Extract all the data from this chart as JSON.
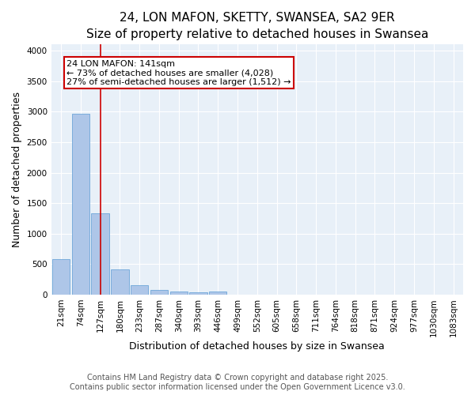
{
  "title": "24, LON MAFON, SKETTY, SWANSEA, SA2 9ER",
  "subtitle": "Size of property relative to detached houses in Swansea",
  "xlabel": "Distribution of detached houses by size in Swansea",
  "ylabel": "Number of detached properties",
  "categories": [
    "21sqm",
    "74sqm",
    "127sqm",
    "180sqm",
    "233sqm",
    "287sqm",
    "340sqm",
    "393sqm",
    "446sqm",
    "499sqm",
    "552sqm",
    "605sqm",
    "658sqm",
    "711sqm",
    "764sqm",
    "818sqm",
    "871sqm",
    "924sqm",
    "977sqm",
    "1030sqm",
    "1083sqm"
  ],
  "values": [
    580,
    2970,
    1330,
    420,
    160,
    75,
    50,
    35,
    50,
    0,
    0,
    0,
    0,
    0,
    0,
    0,
    0,
    0,
    0,
    0,
    0
  ],
  "bar_color": "#aec6e8",
  "bar_edge_color": "#5b9bd5",
  "vline_x": 2,
  "vline_color": "#cc0000",
  "annotation_title": "24 LON MAFON: 141sqm",
  "annotation_line2": "← 73% of detached houses are smaller (4,028)",
  "annotation_line3": "27% of semi-detached houses are larger (1,512) →",
  "annotation_box_color": "#cc0000",
  "ylim": [
    0,
    4100
  ],
  "yticks": [
    0,
    500,
    1000,
    1500,
    2000,
    2500,
    3000,
    3500,
    4000
  ],
  "background_color": "#e8f0f8",
  "footer_line1": "Contains HM Land Registry data © Crown copyright and database right 2025.",
  "footer_line2": "Contains public sector information licensed under the Open Government Licence v3.0.",
  "title_fontsize": 11,
  "axis_label_fontsize": 9,
  "tick_fontsize": 7.5,
  "footer_fontsize": 7,
  "annotation_fontsize": 8
}
